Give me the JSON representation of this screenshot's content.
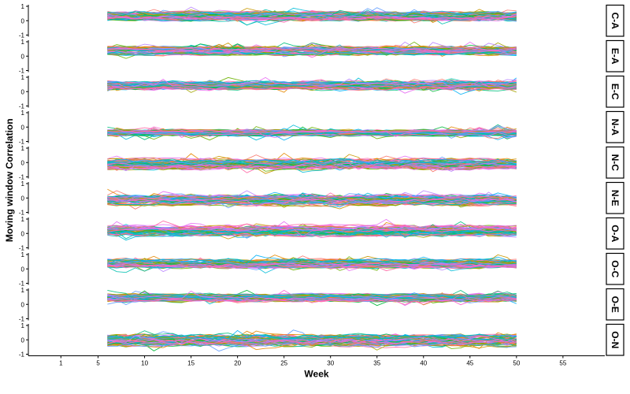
{
  "chart_data": {
    "type": "line",
    "title": "",
    "xlabel": "Week",
    "ylabel": "Moving window Correlation",
    "xlim": [
      -2.5,
      59.5
    ],
    "x_ticks": [
      1,
      5,
      10,
      15,
      20,
      25,
      30,
      35,
      40,
      45,
      50,
      55
    ],
    "x_data_range": [
      6,
      50
    ],
    "ylim": [
      -1,
      1
    ],
    "y_ticks": [
      -1,
      0,
      1
    ],
    "grid": false,
    "legend": "none",
    "series_per_panel_approx": 60,
    "palette": [
      "#F8766D",
      "#E58700",
      "#C99800",
      "#A3A500",
      "#6BB100",
      "#00BA38",
      "#00BF7D",
      "#00C0AF",
      "#00BCD8",
      "#00B0F6",
      "#619CFF",
      "#B983FF",
      "#E76BF3",
      "#FD61D1",
      "#FF67A4"
    ],
    "panels": [
      {
        "label": "C-A",
        "center": 0.3,
        "spread": 0.32
      },
      {
        "label": "E-A",
        "center": 0.38,
        "spread": 0.3
      },
      {
        "label": "E-C",
        "center": 0.42,
        "spread": 0.3
      },
      {
        "label": "N-A",
        "center": -0.4,
        "spread": 0.22
      },
      {
        "label": "N-C",
        "center": -0.1,
        "spread": 0.38
      },
      {
        "label": "N-E",
        "center": -0.15,
        "spread": 0.36
      },
      {
        "label": "O-A",
        "center": 0.2,
        "spread": 0.38
      },
      {
        "label": "O-C",
        "center": 0.38,
        "spread": 0.32
      },
      {
        "label": "O-E",
        "center": 0.45,
        "spread": 0.28
      },
      {
        "label": "O-N",
        "center": -0.05,
        "spread": 0.42
      }
    ]
  }
}
